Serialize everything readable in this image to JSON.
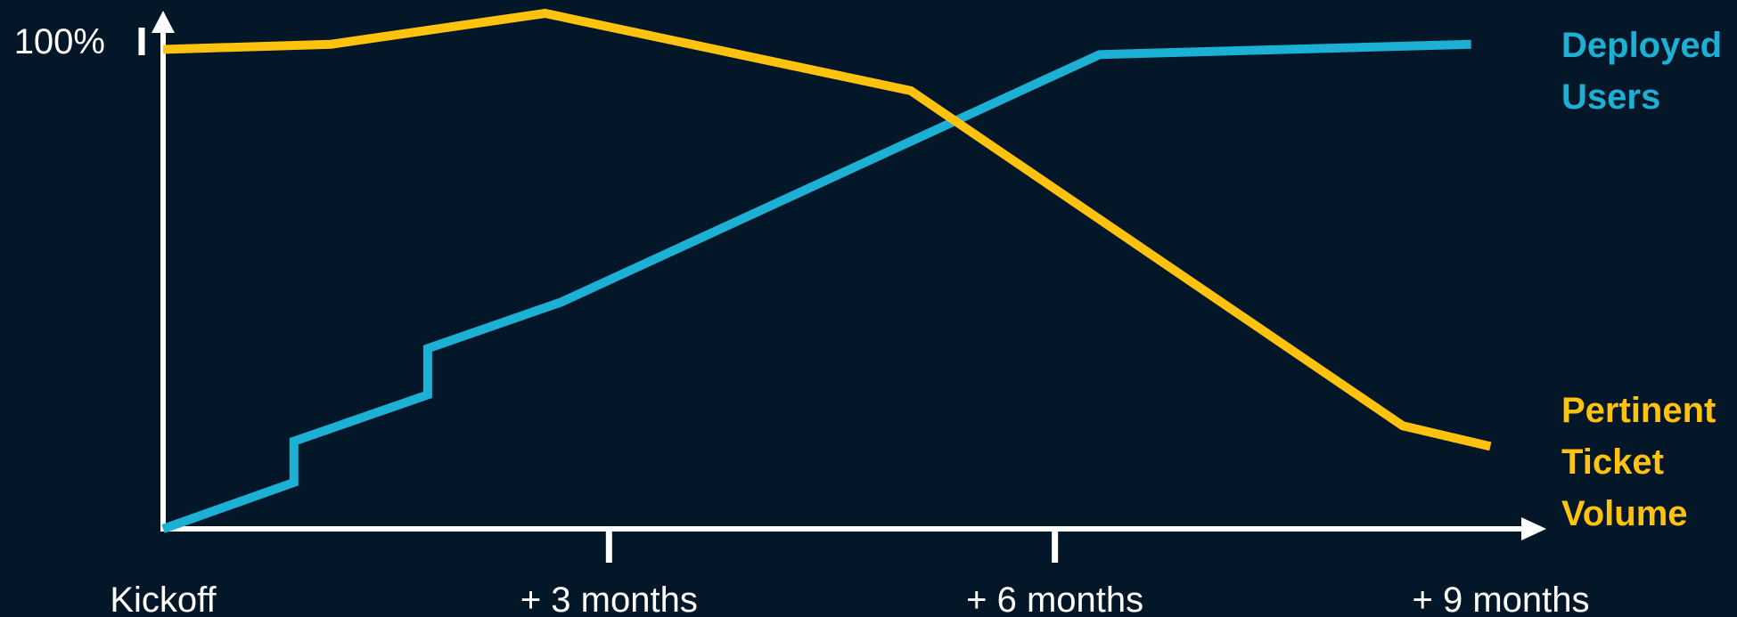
{
  "chart_data": {
    "type": "line",
    "title": "",
    "xlabel": "",
    "ylabel": "",
    "x_ticks": [
      {
        "label": "Kickoff",
        "x": 0
      },
      {
        "label": "+ 3 months",
        "x": 3
      },
      {
        "label": "+ 6 months",
        "x": 6
      },
      {
        "label": "+ 9 months",
        "x": 9
      }
    ],
    "y_ticks": [
      {
        "label": "100%",
        "y": 100
      }
    ],
    "xlim": [
      0,
      9
    ],
    "ylim": [
      0,
      100
    ],
    "grid": false,
    "legend_position": "right",
    "series": [
      {
        "name": "Deployed Users",
        "legend_lines": [
          "Deployed",
          "Users"
        ],
        "color": "#1BB0D4",
        "points": [
          {
            "x": 0,
            "y": 0
          },
          {
            "x": 0.88,
            "y": 9
          },
          {
            "x": 0.88,
            "y": 17
          },
          {
            "x": 1.78,
            "y": 26
          },
          {
            "x": 1.78,
            "y": 35
          },
          {
            "x": 2.68,
            "y": 44
          },
          {
            "x": 6.3,
            "y": 92
          },
          {
            "x": 8.8,
            "y": 94
          }
        ]
      },
      {
        "name": "Pertinent Ticket Volume",
        "legend_lines": [
          "Pertinent",
          "Ticket",
          "Volume"
        ],
        "color": "#FFC20E",
        "points": [
          {
            "x": 0,
            "y": 93
          },
          {
            "x": 1.13,
            "y": 94
          },
          {
            "x": 2.57,
            "y": 100
          },
          {
            "x": 5.03,
            "y": 85
          },
          {
            "x": 8.34,
            "y": 20
          },
          {
            "x": 8.93,
            "y": 16
          }
        ]
      }
    ]
  }
}
